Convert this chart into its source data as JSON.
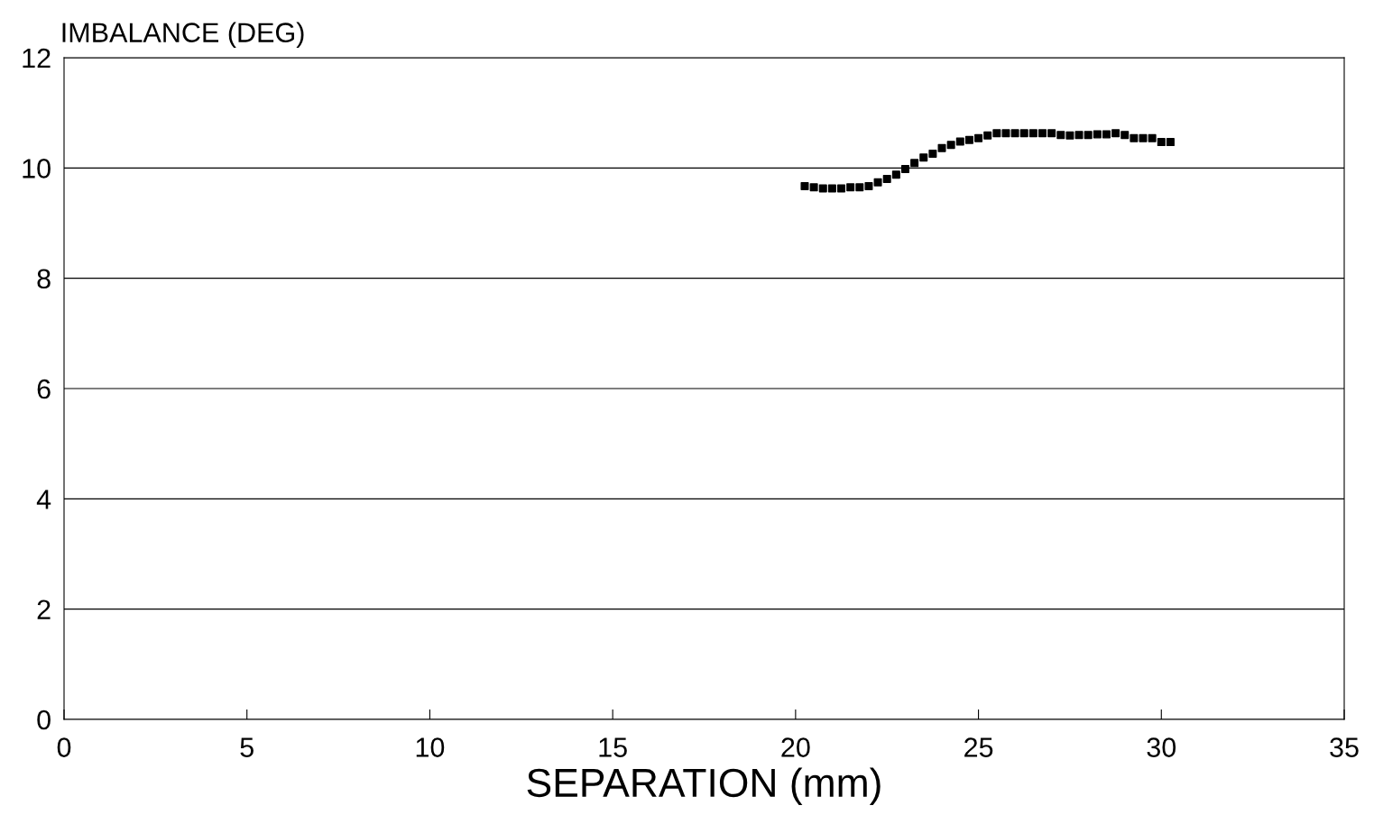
{
  "chart_data": {
    "type": "scatter",
    "xlabel": "SEPARATION (mm)",
    "ylabel": "IMBALANCE (DEG)",
    "x": [
      20.25,
      20.5,
      20.75,
      21.0,
      21.25,
      21.5,
      21.75,
      22.0,
      22.25,
      22.5,
      22.75,
      23.0,
      23.25,
      23.5,
      23.75,
      24.0,
      24.25,
      24.5,
      24.75,
      25.0,
      25.25,
      25.5,
      25.75,
      26.0,
      26.25,
      26.5,
      26.75,
      27.0,
      27.25,
      27.5,
      27.75,
      28.0,
      28.25,
      28.5,
      28.75,
      29.0,
      29.25,
      29.5,
      29.75,
      30.0,
      30.25
    ],
    "series": [
      {
        "color": "#000000",
        "values": [
          9.67,
          9.65,
          9.63,
          9.63,
          9.63,
          9.65,
          9.65,
          9.67,
          9.74,
          9.8,
          9.88,
          9.98,
          10.09,
          10.19,
          10.26,
          10.36,
          10.42,
          10.48,
          10.51,
          10.54,
          10.59,
          10.63,
          10.63,
          10.63,
          10.63,
          10.63,
          10.63,
          10.63,
          10.6,
          10.59,
          10.6,
          10.6,
          10.61,
          10.61,
          10.63,
          10.6,
          10.54,
          10.54,
          10.54,
          10.47,
          10.47
        ]
      }
    ],
    "xlim": [
      0,
      35
    ],
    "xticks": [
      0,
      5,
      10,
      15,
      20,
      25,
      30,
      35
    ],
    "ylim": [
      0,
      12
    ],
    "yticks": [
      0,
      2,
      4,
      6,
      8,
      10,
      12
    ],
    "grid": "y",
    "marker": "square",
    "legend": false
  }
}
